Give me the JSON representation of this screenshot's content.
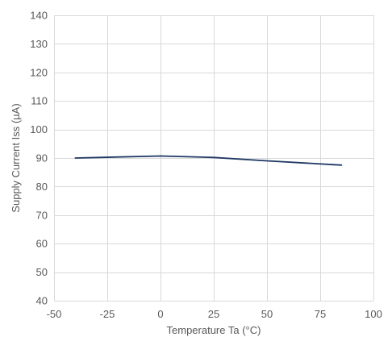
{
  "chart_data": {
    "type": "line",
    "xlabel": "Temperature  Ta (°C)",
    "ylabel": "Supply Current Iss (µA)",
    "xlim": [
      -50,
      100
    ],
    "ylim": [
      40,
      140
    ],
    "xticks": [
      -50,
      -25,
      0,
      25,
      50,
      75,
      100
    ],
    "yticks": [
      40,
      50,
      60,
      70,
      80,
      90,
      100,
      110,
      120,
      130,
      140
    ],
    "xtick_labels": [
      "-50",
      "-25",
      "0",
      "25",
      "50",
      "75",
      "100"
    ],
    "ytick_labels": [
      "40",
      "50",
      "60",
      "70",
      "80",
      "90",
      "100",
      "110",
      "120",
      "130",
      "140"
    ],
    "grid": true,
    "series": [
      {
        "color": "#1f3864",
        "x": [
          -40,
          0,
          25,
          50,
          85
        ],
        "y": [
          90.0,
          90.7,
          90.2,
          89.0,
          87.5
        ]
      }
    ]
  }
}
